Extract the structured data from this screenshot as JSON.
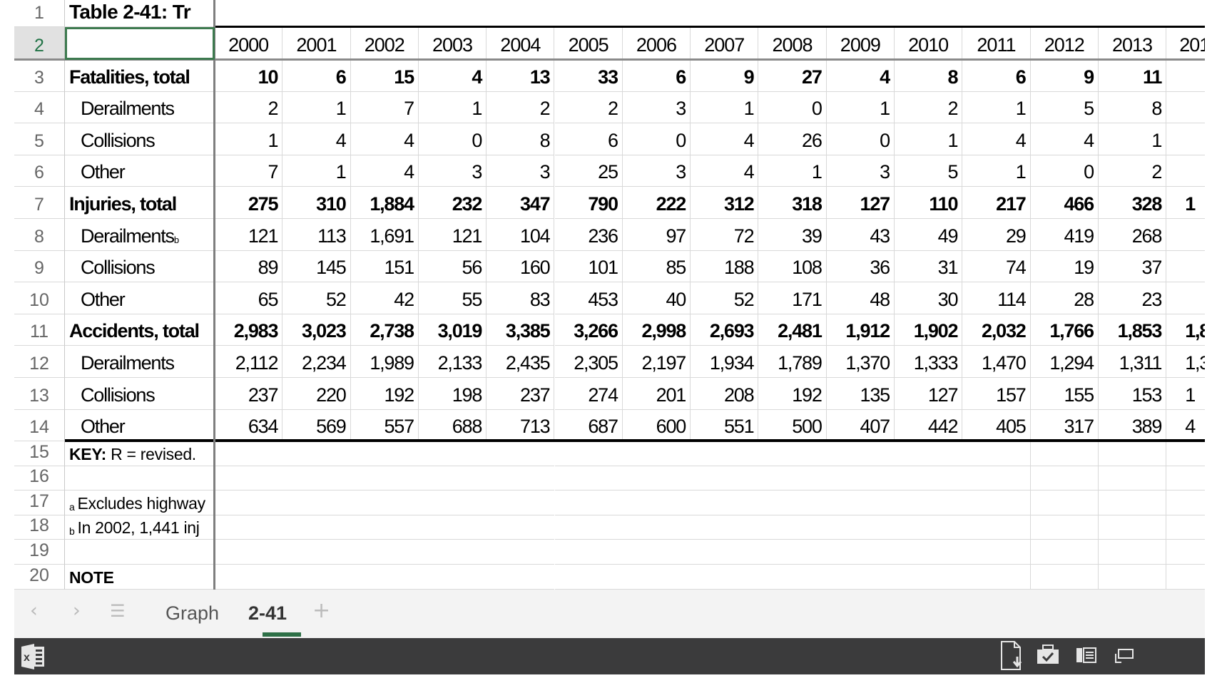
{
  "sheet": {
    "title": "Table 2-41: Tr",
    "years": [
      "2000",
      "2001",
      "2002",
      "2003",
      "2004",
      "2005",
      "2006",
      "2007",
      "2008",
      "2009",
      "2010",
      "2011",
      "2012",
      "2013",
      "201"
    ],
    "row_numbers": [
      "1",
      "2",
      "3",
      "4",
      "5",
      "6",
      "7",
      "8",
      "9",
      "10",
      "11",
      "12",
      "13",
      "14",
      "15",
      "16",
      "17",
      "18",
      "19",
      "20"
    ],
    "rows": [
      {
        "label": "Fatalities, total",
        "bold": true,
        "values": [
          "10",
          "6",
          "15",
          "4",
          "13",
          "33",
          "6",
          "9",
          "27",
          "4",
          "8",
          "6",
          "9",
          "11",
          ""
        ]
      },
      {
        "label": "Derailments",
        "values": [
          "2",
          "1",
          "7",
          "1",
          "2",
          "2",
          "3",
          "1",
          "0",
          "1",
          "2",
          "1",
          "5",
          "8",
          ""
        ]
      },
      {
        "label": "Collisions",
        "values": [
          "1",
          "4",
          "4",
          "0",
          "8",
          "6",
          "0",
          "4",
          "26",
          "0",
          "1",
          "4",
          "4",
          "1",
          ""
        ]
      },
      {
        "label": "Other",
        "values": [
          "7",
          "1",
          "4",
          "3",
          "3",
          "25",
          "3",
          "4",
          "1",
          "3",
          "5",
          "1",
          "0",
          "2",
          ""
        ]
      },
      {
        "label": "Injuries, total",
        "bold": true,
        "values": [
          "275",
          "310",
          "1,884",
          "232",
          "347",
          "790",
          "222",
          "312",
          "318",
          "127",
          "110",
          "217",
          "466",
          "328",
          "1"
        ]
      },
      {
        "label": "Derailments",
        "sup": "b",
        "values": [
          "121",
          "113",
          "1,691",
          "121",
          "104",
          "236",
          "97",
          "72",
          "39",
          "43",
          "49",
          "29",
          "419",
          "268",
          ""
        ]
      },
      {
        "label": "Collisions",
        "values": [
          "89",
          "145",
          "151",
          "56",
          "160",
          "101",
          "85",
          "188",
          "108",
          "36",
          "31",
          "74",
          "19",
          "37",
          ""
        ]
      },
      {
        "label": "Other",
        "values": [
          "65",
          "52",
          "42",
          "55",
          "83",
          "453",
          "40",
          "52",
          "171",
          "48",
          "30",
          "114",
          "28",
          "23",
          ""
        ]
      },
      {
        "label": "Accidents, total",
        "bold": true,
        "values": [
          "2,983",
          "3,023",
          "2,738",
          "3,019",
          "3,385",
          "3,266",
          "2,998",
          "2,693",
          "2,481",
          "1,912",
          "1,902",
          "2,032",
          "1,766",
          "1,853",
          "1,8"
        ]
      },
      {
        "label": "Derailments",
        "values": [
          "2,112",
          "2,234",
          "1,989",
          "2,133",
          "2,435",
          "2,305",
          "2,197",
          "1,934",
          "1,789",
          "1,370",
          "1,333",
          "1,470",
          "1,294",
          "1,311",
          "1,3"
        ]
      },
      {
        "label": "Collisions",
        "values": [
          "237",
          "220",
          "192",
          "198",
          "237",
          "274",
          "201",
          "208",
          "192",
          "135",
          "127",
          "157",
          "155",
          "153",
          "1"
        ]
      },
      {
        "label": "Other",
        "values": [
          "634",
          "569",
          "557",
          "688",
          "713",
          "687",
          "600",
          "551",
          "500",
          "407",
          "442",
          "405",
          "317",
          "389",
          "4"
        ]
      }
    ],
    "notes": {
      "key_label": "KEY:",
      "key_text": " R = revised.",
      "fn_a_marker": "a",
      "fn_a_text": "Excludes highway",
      "fn_b_marker": "b",
      "fn_b_text": "In 2002, 1,441 inj",
      "note": "NOTE"
    }
  },
  "tabs": {
    "prev_icon": "chevron-left-icon",
    "next_icon": "chevron-right-icon",
    "list_icon": "hamburger-icon",
    "items": [
      "Graph",
      "2-41"
    ],
    "active": "2-41",
    "add_icon": "plus-icon"
  },
  "colors": {
    "accent": "#217346",
    "taskbar": "#3b3b3c"
  }
}
